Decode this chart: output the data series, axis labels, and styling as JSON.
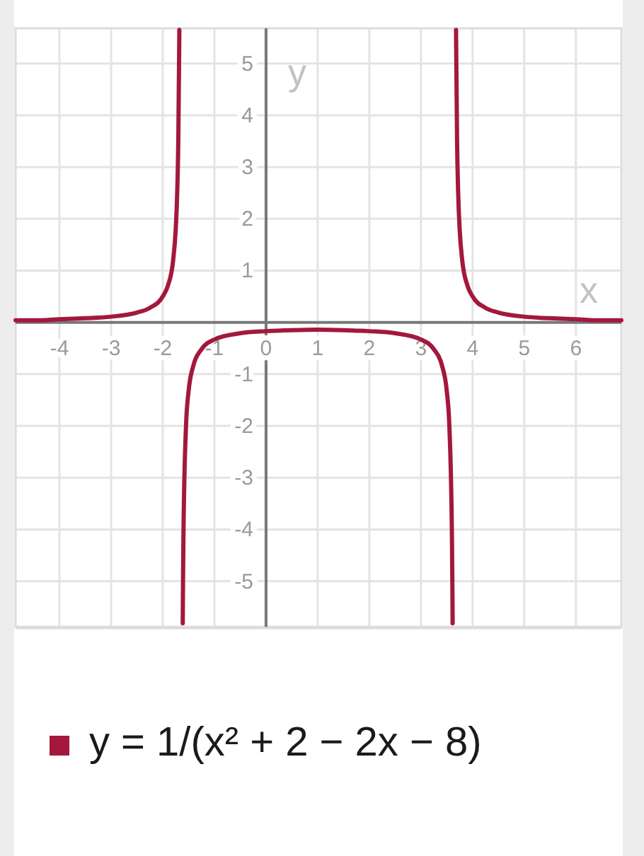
{
  "chart_data": {
    "type": "line",
    "xlabel": "x",
    "ylabel": "y",
    "xlim": [
      -4.85,
      6.88
    ],
    "ylim": [
      -5.88,
      5.68
    ],
    "xticks": [
      -4,
      -3,
      -2,
      -1,
      0,
      1,
      2,
      3,
      4,
      5,
      6
    ],
    "yticks": [
      -5,
      -4,
      -3,
      -2,
      -1,
      1,
      2,
      3,
      4,
      5
    ],
    "grid": true,
    "legend": "bottom",
    "x": [
      -4.85,
      -4.5,
      -4,
      -3.5,
      -3,
      -2.5,
      -2.25,
      -2,
      -1.9,
      -1.8,
      -1.75,
      -1.72,
      -1.7,
      -1.68,
      -1.679,
      -1.65,
      -1.613,
      -1.61,
      -1.6,
      -1.55,
      -1.5,
      -1.4,
      -1.25,
      -1,
      -0.5,
      0,
      0.5,
      1,
      1.5,
      2,
      2.5,
      3,
      3.25,
      3.4,
      3.5,
      3.55,
      3.6,
      3.61,
      3.613,
      3.65,
      3.679,
      3.68,
      3.7,
      3.72,
      3.75,
      3.8,
      3.9,
      4,
      4.25,
      4.5,
      5,
      5.5,
      6,
      6.5,
      6.88
    ],
    "series": [
      {
        "name": "y = 1/(x² + 2 − 2x − 8)",
        "color": "#a3183c",
        "values": [
          0.04,
          0.04,
          0.06,
          0.08,
          0.11,
          0.19,
          0.28,
          0.5,
          0.71,
          1.19,
          1.78,
          2.51,
          3.45,
          5.48,
          5.65,
          null,
          -5.81,
          -5.32,
          -4.17,
          -2.01,
          -1.33,
          -0.81,
          -0.52,
          -0.33,
          -0.21,
          -0.17,
          -0.15,
          -0.14,
          -0.15,
          -0.17,
          -0.21,
          -0.33,
          -0.52,
          -0.81,
          -1.33,
          -2.01,
          -4.17,
          -5.32,
          -5.81,
          null,
          5.65,
          5.48,
          3.45,
          2.51,
          1.78,
          1.19,
          0.71,
          0.5,
          0.28,
          0.19,
          0.11,
          0.08,
          0.06,
          0.04,
          0.04
        ]
      }
    ]
  }
}
